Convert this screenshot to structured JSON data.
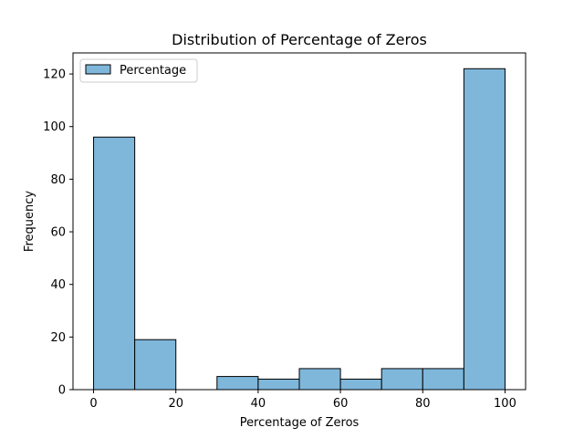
{
  "chart_data": {
    "type": "bar",
    "title": "Distribution of Percentage of Zeros",
    "xlabel": "Percentage of Zeros",
    "ylabel": "Frequency",
    "xlim": [
      -5,
      105
    ],
    "ylim": [
      0,
      128
    ],
    "xticks": [
      0,
      20,
      40,
      60,
      80,
      100
    ],
    "yticks": [
      0,
      20,
      40,
      60,
      80,
      100,
      120
    ],
    "grid": false,
    "legend": {
      "placement": "top-left",
      "entries": [
        "Percentage"
      ]
    },
    "colors": {
      "fill": "#7fb7db",
      "edge": "#000000"
    },
    "bins": [
      {
        "x0": 0,
        "x1": 10,
        "count": 96
      },
      {
        "x0": 10,
        "x1": 20,
        "count": 19
      },
      {
        "x0": 20,
        "x1": 30,
        "count": 0
      },
      {
        "x0": 30,
        "x1": 40,
        "count": 5
      },
      {
        "x0": 40,
        "x1": 50,
        "count": 4
      },
      {
        "x0": 50,
        "x1": 60,
        "count": 8
      },
      {
        "x0": 60,
        "x1": 70,
        "count": 4
      },
      {
        "x0": 70,
        "x1": 80,
        "count": 8
      },
      {
        "x0": 80,
        "x1": 90,
        "count": 8
      },
      {
        "x0": 90,
        "x1": 100,
        "count": 122
      }
    ]
  }
}
